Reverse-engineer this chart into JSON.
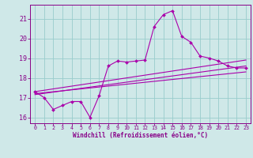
{
  "background_color": "#cfe8e8",
  "line_color": "#aa00aa",
  "grid_color": "#99cccc",
  "xlabel": "Windchill (Refroidissement éolien,°C)",
  "xlabel_color": "#880088",
  "tick_color": "#880088",
  "spine_color": "#880088",
  "xlim": [
    -0.5,
    23.5
  ],
  "ylim": [
    15.7,
    21.7
  ],
  "yticks": [
    16,
    17,
    18,
    19,
    20,
    21
  ],
  "xticks": [
    0,
    1,
    2,
    3,
    4,
    5,
    6,
    7,
    8,
    9,
    10,
    11,
    12,
    13,
    14,
    15,
    16,
    17,
    18,
    19,
    20,
    21,
    22,
    23
  ],
  "line1_x": [
    0,
    1,
    2,
    3,
    4,
    5,
    6,
    7,
    8,
    9,
    10,
    11,
    12,
    13,
    14,
    15,
    16,
    17,
    18,
    19,
    20,
    21,
    22,
    23
  ],
  "line1_y": [
    17.3,
    17.0,
    16.4,
    16.6,
    16.8,
    16.8,
    16.0,
    17.1,
    18.6,
    18.85,
    18.8,
    18.85,
    18.9,
    20.6,
    21.2,
    21.4,
    20.1,
    19.8,
    19.1,
    19.0,
    18.85,
    18.6,
    18.5,
    18.5
  ],
  "line2_x": [
    0,
    23
  ],
  "line2_y": [
    17.15,
    18.6
  ],
  "line3_x": [
    0,
    23
  ],
  "line3_y": [
    17.3,
    18.9
  ],
  "line4_x": [
    0,
    23
  ],
  "line4_y": [
    17.2,
    18.3
  ],
  "marker_size": 2.0,
  "line_width": 0.8,
  "figsize": [
    3.2,
    2.0
  ],
  "dpi": 100
}
